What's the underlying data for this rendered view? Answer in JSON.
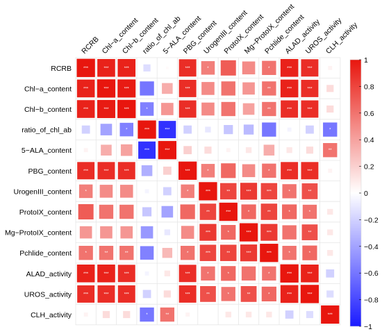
{
  "chart_data": {
    "type": "heatmap",
    "variables": [
      "RCRB",
      "Chl−a_content",
      "Chl−b_content",
      "ratio_of_chl_ab",
      "5−ALA_content",
      "PBG_content",
      "UrogenIII_content",
      "ProtoIX_content",
      "Mg−ProtoIX_content",
      "Pchlide_content",
      "ALAD_activity",
      "UROS_activity",
      "CLH_activity"
    ],
    "row_labels": [
      "RCRB",
      "Chl−a_content",
      "Chl−b_content",
      "ratio_of_chl_ab",
      "5−ALA_content",
      "PBG_content",
      "UrogenIII_content",
      "ProtoIX_content",
      "Mg−ProtoIX_content",
      "Pchlide_content",
      "ALAD_activity",
      "UROS_activity",
      "CLH_activity"
    ],
    "col_labels": [
      "RCRB",
      "Chl−a_content",
      "Chl−b_content",
      "ratio_of_chl_ab",
      "5−ALA_content",
      "PBG_content",
      "UrogenIII_content",
      "ProtoIX_content",
      "Mg−ProtoIX_content",
      "Pchlide_content",
      "ALAD_activity",
      "UROS_activity",
      "CLH_activity"
    ],
    "matrix": [
      [
        1.0,
        0.95,
        0.95,
        -0.15,
        0.02,
        0.9,
        0.55,
        0.7,
        0.5,
        0.6,
        0.95,
        0.9,
        0.05
      ],
      [
        0.95,
        1.0,
        0.98,
        -0.6,
        0.35,
        0.9,
        0.5,
        0.6,
        0.45,
        0.6,
        0.95,
        0.9,
        0.15
      ],
      [
        0.95,
        0.98,
        1.0,
        -0.55,
        0.45,
        0.9,
        0.5,
        0.6,
        0.4,
        0.6,
        0.9,
        0.9,
        0.15
      ],
      [
        -0.2,
        -0.4,
        -0.55,
        1.0,
        -0.9,
        -0.2,
        -0.1,
        -0.25,
        -0.3,
        -0.6,
        -0.05,
        -0.2,
        -0.6
      ],
      [
        0.05,
        0.35,
        0.4,
        -0.9,
        1.0,
        0.2,
        0.15,
        0.05,
        0.1,
        0.35,
        0.1,
        0.15,
        0.6
      ],
      [
        0.9,
        0.9,
        0.9,
        -0.35,
        0.2,
        1.0,
        0.55,
        0.65,
        0.5,
        0.6,
        0.9,
        0.9,
        0.05
      ],
      [
        0.55,
        0.5,
        0.5,
        -0.05,
        -0.2,
        0.55,
        1.0,
        0.8,
        0.85,
        0.8,
        0.6,
        0.75,
        0.0
      ],
      [
        0.7,
        0.6,
        0.6,
        -0.25,
        -0.4,
        0.65,
        0.8,
        1.0,
        0.65,
        0.8,
        0.65,
        0.6,
        0.1
      ],
      [
        0.45,
        0.45,
        0.45,
        -0.45,
        -0.1,
        0.5,
        0.85,
        0.65,
        1.0,
        0.85,
        0.6,
        0.75,
        0.1
      ],
      [
        0.6,
        0.6,
        0.6,
        -0.55,
        0.3,
        0.6,
        0.8,
        0.8,
        0.85,
        1.0,
        0.6,
        0.65,
        0.1
      ],
      [
        0.95,
        0.95,
        0.9,
        -0.05,
        0.1,
        0.9,
        0.6,
        0.65,
        0.6,
        0.6,
        1.0,
        0.95,
        -0.2
      ],
      [
        0.9,
        0.9,
        0.9,
        -0.2,
        0.15,
        0.9,
        0.75,
        0.6,
        0.75,
        0.65,
        0.95,
        1.0,
        -0.15
      ],
      [
        0.05,
        0.15,
        0.15,
        -0.6,
        0.6,
        0.05,
        0.0,
        0.1,
        0.1,
        0.1,
        -0.2,
        -0.15,
        1.0
      ]
    ],
    "significance": [
      [
        "***",
        "***",
        "***",
        "",
        "",
        "***",
        "*",
        "",
        "",
        "*",
        "***",
        "***",
        ""
      ],
      [
        "***",
        "***",
        "***",
        "",
        "",
        "***",
        "",
        "",
        "",
        "**",
        "***",
        "***",
        ""
      ],
      [
        "***",
        "***",
        "***",
        "*",
        "",
        "***",
        "",
        "",
        "",
        "**",
        "***",
        "***",
        ""
      ],
      [
        "",
        "",
        "*",
        "***",
        "***",
        "",
        "",
        "",
        "",
        "",
        "",
        "",
        "*"
      ],
      [
        "",
        "",
        "",
        "***",
        "***",
        "",
        "",
        "",
        "",
        "",
        "",
        "",
        "**"
      ],
      [
        "***",
        "***",
        "***",
        "",
        "",
        "***",
        "*",
        "",
        "",
        "*",
        "***",
        "***",
        ""
      ],
      [
        "*",
        "",
        "",
        "",
        "",
        "*",
        "***",
        "**",
        "***",
        "***",
        "*",
        "**",
        ""
      ],
      [
        "",
        "",
        "",
        "",
        "",
        "",
        "**",
        "***",
        "*",
        "**",
        "*",
        "*",
        ""
      ],
      [
        "",
        "",
        "",
        "",
        "",
        "",
        "***",
        "*",
        "***",
        "***",
        "",
        "**",
        ""
      ],
      [
        "*",
        "**",
        "**",
        "",
        "",
        "*",
        "***",
        "**",
        "***",
        "***",
        "*",
        "*",
        ""
      ],
      [
        "***",
        "***",
        "***",
        "",
        "",
        "***",
        "*",
        "*",
        "",
        "*",
        "***",
        "***",
        ""
      ],
      [
        "***",
        "***",
        "***",
        "",
        "",
        "***",
        "**",
        "*",
        "**",
        "*",
        "***",
        "***",
        ""
      ],
      [
        "",
        "",
        "",
        "*",
        "**",
        "",
        "",
        "",
        "",
        "",
        "",
        "",
        "***"
      ]
    ],
    "colorbar": {
      "range": [
        -1,
        1
      ],
      "ticks": [
        "1",
        "0.8",
        "0.6",
        "0.4",
        "0.2",
        "0",
        "−0.2",
        "−0.4",
        "−0.6",
        "−0.8",
        "−1"
      ],
      "colors": {
        "positive": "#e8160e",
        "zero": "#ffffff",
        "negative": "#1a1aff"
      }
    },
    "xlabel": "",
    "ylabel": "",
    "title": ""
  }
}
